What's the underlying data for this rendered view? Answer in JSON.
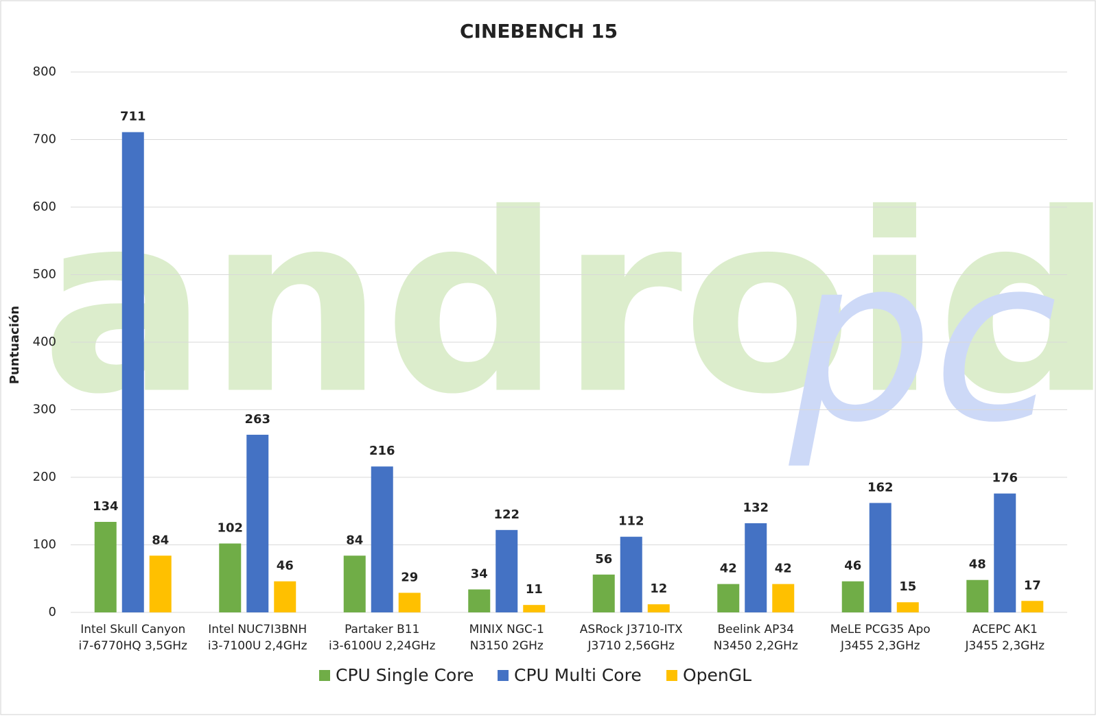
{
  "chart_data": {
    "type": "bar",
    "title": "CINEBENCH 15",
    "y_label": "Puntuación",
    "watermark": [
      "android",
      "pc"
    ],
    "watermark_colors": [
      "#dcedcc",
      "#cdd9f7"
    ],
    "categories": [
      [
        "Intel Skull Canyon",
        "i7-6770HQ 3,5GHz"
      ],
      [
        "Intel NUC7I3BNH",
        "i3-7100U 2,4GHz"
      ],
      [
        "Partaker B11",
        "i3-6100U 2,24GHz"
      ],
      [
        "MINIX NGC-1",
        "N3150 2GHz"
      ],
      [
        "ASRock J3710-ITX",
        "J3710 2,56GHz"
      ],
      [
        "Beelink AP34",
        "N3450 2,2GHz"
      ],
      [
        "MeLE PCG35 Apo",
        "J3455 2,3GHz"
      ],
      [
        "ACEPC AK1",
        "J3455 2,3GHz"
      ]
    ],
    "series": [
      {
        "name": "CPU Single Core",
        "color": "#70ad47",
        "values": [
          134,
          102,
          84,
          34,
          56,
          42,
          46,
          48
        ]
      },
      {
        "name": "CPU Multi Core",
        "color": "#4472c4",
        "values": [
          711,
          263,
          216,
          122,
          112,
          132,
          162,
          176
        ]
      },
      {
        "name": "OpenGL",
        "color": "#ffc000",
        "values": [
          84,
          46,
          29,
          11,
          12,
          42,
          15,
          17
        ]
      }
    ],
    "ylim": [
      0,
      800
    ],
    "yticks": [
      0,
      100,
      200,
      300,
      400,
      500,
      600,
      700,
      800
    ],
    "grid": true,
    "legend": "bottom"
  }
}
